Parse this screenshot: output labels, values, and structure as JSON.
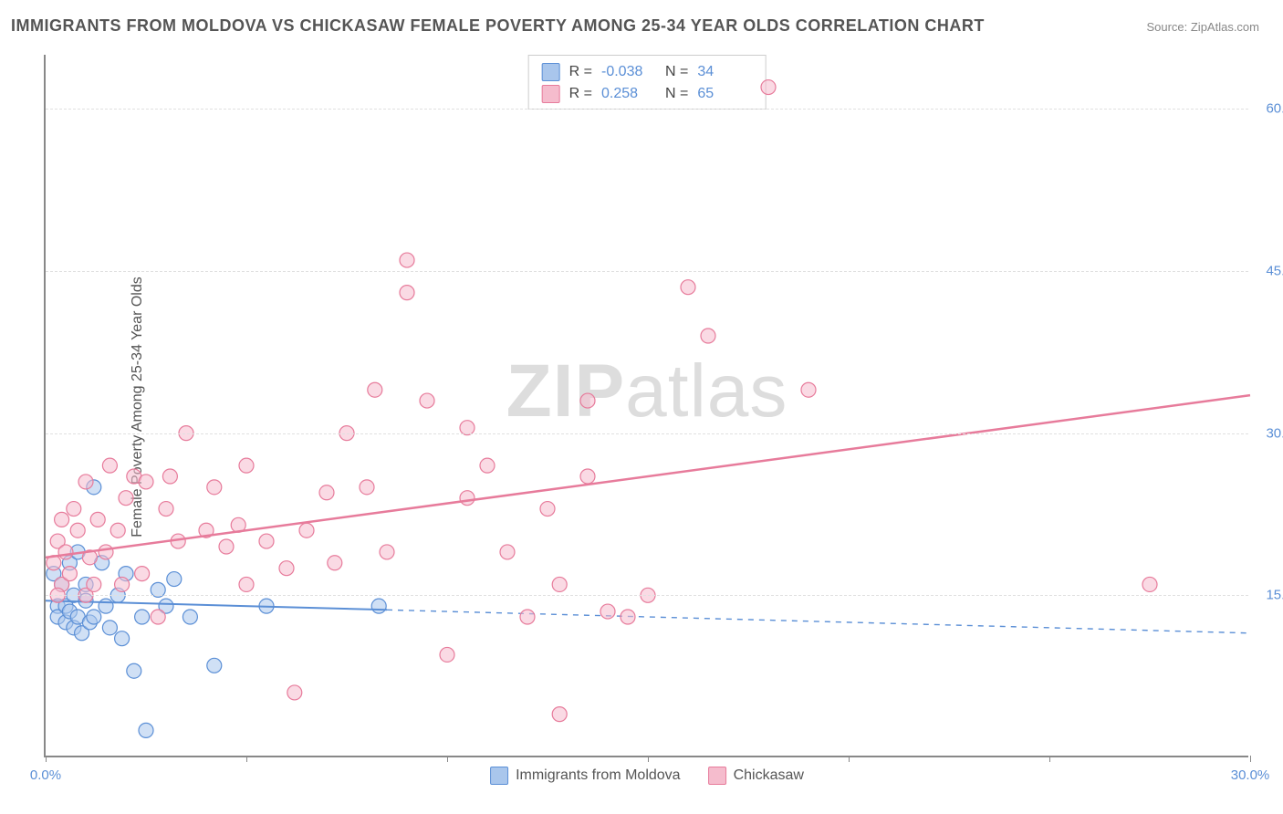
{
  "title": "IMMIGRANTS FROM MOLDOVA VS CHICKASAW FEMALE POVERTY AMONG 25-34 YEAR OLDS CORRELATION CHART",
  "source_prefix": "Source: ",
  "source_name": "ZipAtlas.com",
  "watermark_bold": "ZIP",
  "watermark_rest": "atlas",
  "chart": {
    "type": "scatter",
    "ylabel": "Female Poverty Among 25-34 Year Olds",
    "xlim": [
      0,
      30
    ],
    "ylim": [
      0,
      65
    ],
    "xtick_positions": [
      0,
      5,
      10,
      15,
      20,
      25,
      30
    ],
    "xtick_labels": {
      "0": "0.0%",
      "30": "30.0%"
    },
    "ytick_positions": [
      15,
      30,
      45,
      60
    ],
    "ytick_labels": {
      "15": "15.0%",
      "30": "30.0%",
      "45": "45.0%",
      "60": "60.0%"
    },
    "background_color": "#ffffff",
    "grid_color": "#e0e0e0",
    "axis_color": "#888888",
    "tick_label_color": "#5b8fd6",
    "marker_radius": 8,
    "marker_opacity": 0.55,
    "series": [
      {
        "name": "Immigrants from Moldova",
        "color_stroke": "#5b8fd6",
        "color_fill": "#a9c6ec",
        "R": "-0.038",
        "N": "34",
        "trend": {
          "y_at_xmin": 14.5,
          "y_at_xmax": 11.5,
          "solid_until_x": 8.5,
          "dash_pattern": "6,6",
          "width": 2
        },
        "points": [
          [
            0.2,
            17
          ],
          [
            0.3,
            14
          ],
          [
            0.3,
            13
          ],
          [
            0.4,
            16
          ],
          [
            0.5,
            12.5
          ],
          [
            0.5,
            14
          ],
          [
            0.6,
            13.5
          ],
          [
            0.6,
            18
          ],
          [
            0.7,
            15
          ],
          [
            0.7,
            12
          ],
          [
            0.8,
            19
          ],
          [
            0.8,
            13
          ],
          [
            0.9,
            11.5
          ],
          [
            1.0,
            14.5
          ],
          [
            1.0,
            16
          ],
          [
            1.1,
            12.5
          ],
          [
            1.2,
            25
          ],
          [
            1.2,
            13
          ],
          [
            1.4,
            18
          ],
          [
            1.5,
            14
          ],
          [
            1.6,
            12
          ],
          [
            1.8,
            15
          ],
          [
            1.9,
            11
          ],
          [
            2.0,
            17
          ],
          [
            2.2,
            8
          ],
          [
            2.4,
            13
          ],
          [
            2.8,
            15.5
          ],
          [
            3.0,
            14
          ],
          [
            3.2,
            16.5
          ],
          [
            3.6,
            13
          ],
          [
            4.2,
            8.5
          ],
          [
            5.5,
            14
          ],
          [
            2.5,
            2.5
          ],
          [
            8.3,
            14
          ]
        ]
      },
      {
        "name": "Chickasaw",
        "color_stroke": "#e77b9b",
        "color_fill": "#f5bccd",
        "R": "0.258",
        "N": "65",
        "trend": {
          "y_at_xmin": 18.5,
          "y_at_xmax": 33.5,
          "solid_until_x": 30,
          "dash_pattern": "",
          "width": 2.5
        },
        "points": [
          [
            0.2,
            18
          ],
          [
            0.3,
            20
          ],
          [
            0.4,
            16
          ],
          [
            0.4,
            22
          ],
          [
            0.5,
            19
          ],
          [
            0.6,
            17
          ],
          [
            0.7,
            23
          ],
          [
            0.8,
            21
          ],
          [
            1.0,
            15
          ],
          [
            1.0,
            25.5
          ],
          [
            1.2,
            16
          ],
          [
            1.3,
            22
          ],
          [
            1.5,
            19
          ],
          [
            1.6,
            27
          ],
          [
            1.8,
            21
          ],
          [
            1.9,
            16
          ],
          [
            2.0,
            24
          ],
          [
            2.2,
            26
          ],
          [
            2.4,
            17
          ],
          [
            2.5,
            25.5
          ],
          [
            2.8,
            13
          ],
          [
            3.0,
            23
          ],
          [
            3.1,
            26
          ],
          [
            3.3,
            20
          ],
          [
            3.5,
            30
          ],
          [
            4.0,
            21
          ],
          [
            4.2,
            25
          ],
          [
            4.5,
            19.5
          ],
          [
            4.8,
            21.5
          ],
          [
            5.0,
            27
          ],
          [
            5.0,
            16
          ],
          [
            5.5,
            20
          ],
          [
            6.0,
            17.5
          ],
          [
            6.2,
            6
          ],
          [
            6.5,
            21
          ],
          [
            7.0,
            24.5
          ],
          [
            7.2,
            18
          ],
          [
            7.5,
            30
          ],
          [
            8.0,
            25
          ],
          [
            8.2,
            34
          ],
          [
            8.5,
            19
          ],
          [
            9.0,
            46
          ],
          [
            9.0,
            43
          ],
          [
            9.5,
            33
          ],
          [
            10.0,
            9.5
          ],
          [
            10.5,
            30.5
          ],
          [
            10.5,
            24
          ],
          [
            11.0,
            27
          ],
          [
            11.5,
            19
          ],
          [
            12.0,
            13
          ],
          [
            12.5,
            23
          ],
          [
            12.8,
            4
          ],
          [
            12.8,
            16
          ],
          [
            13.5,
            33
          ],
          [
            13.5,
            26
          ],
          [
            14.0,
            13.5
          ],
          [
            15.0,
            15
          ],
          [
            16.0,
            43.5
          ],
          [
            16.5,
            39
          ],
          [
            18.0,
            62
          ],
          [
            19.0,
            34
          ],
          [
            14.5,
            13
          ],
          [
            27.5,
            16
          ],
          [
            1.1,
            18.5
          ],
          [
            0.3,
            15
          ]
        ]
      }
    ]
  },
  "legend_top_label_R": "R =",
  "legend_top_label_N": "N ="
}
